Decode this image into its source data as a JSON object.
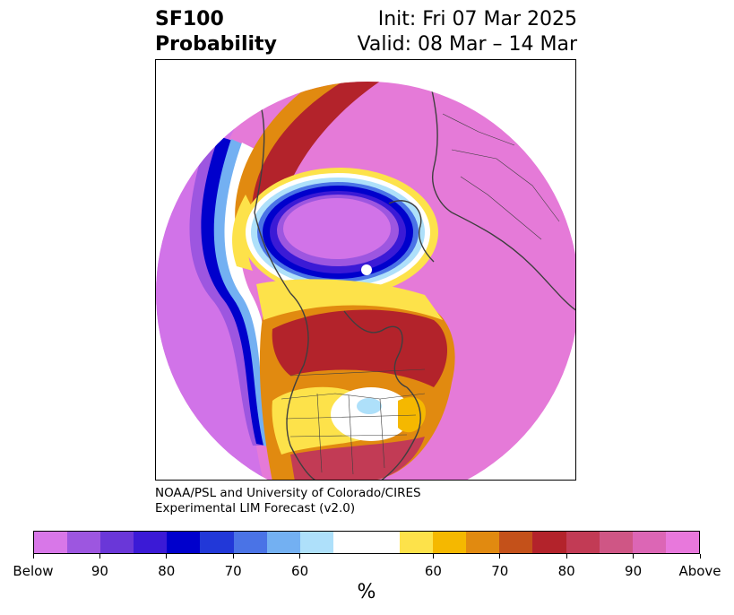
{
  "header": {
    "title_line1": "SF100",
    "title_line2": "Probability",
    "init_text": "Init: Fri 07 Mar 2025",
    "valid_text": "Valid: 08 Mar – 14 Mar"
  },
  "credit": {
    "line1": "NOAA/PSL and University of Colorado/CIRES",
    "line2": "Experimental LIM Forecast (v2.0)"
  },
  "colorbar": {
    "unit": "%",
    "colors": [
      "#d877e8",
      "#9d56e0",
      "#6a37d8",
      "#3b1ad6",
      "#0000cc",
      "#2238d8",
      "#4a73e6",
      "#73b0f2",
      "#aee0fa",
      "#ffffff",
      "#ffffff",
      "#fde24a",
      "#f5b800",
      "#e18a10",
      "#c4511a",
      "#b3232b",
      "#c23b55",
      "#cf5685",
      "#dc66b5",
      "#e878dc"
    ],
    "tick_labels": [
      "Below",
      "90",
      "80",
      "70",
      "60",
      "60",
      "70",
      "80",
      "90",
      "Above"
    ]
  },
  "map": {
    "colors": {
      "above": "#e57ad8",
      "below": "#d173e8",
      "dark_red": "#b3232b",
      "orange": "#e18a10",
      "yellow": "#fde24a",
      "deep_blue": "#0000cc",
      "light_blue": "#aee0fa",
      "coast": "#3f3f3f"
    }
  }
}
